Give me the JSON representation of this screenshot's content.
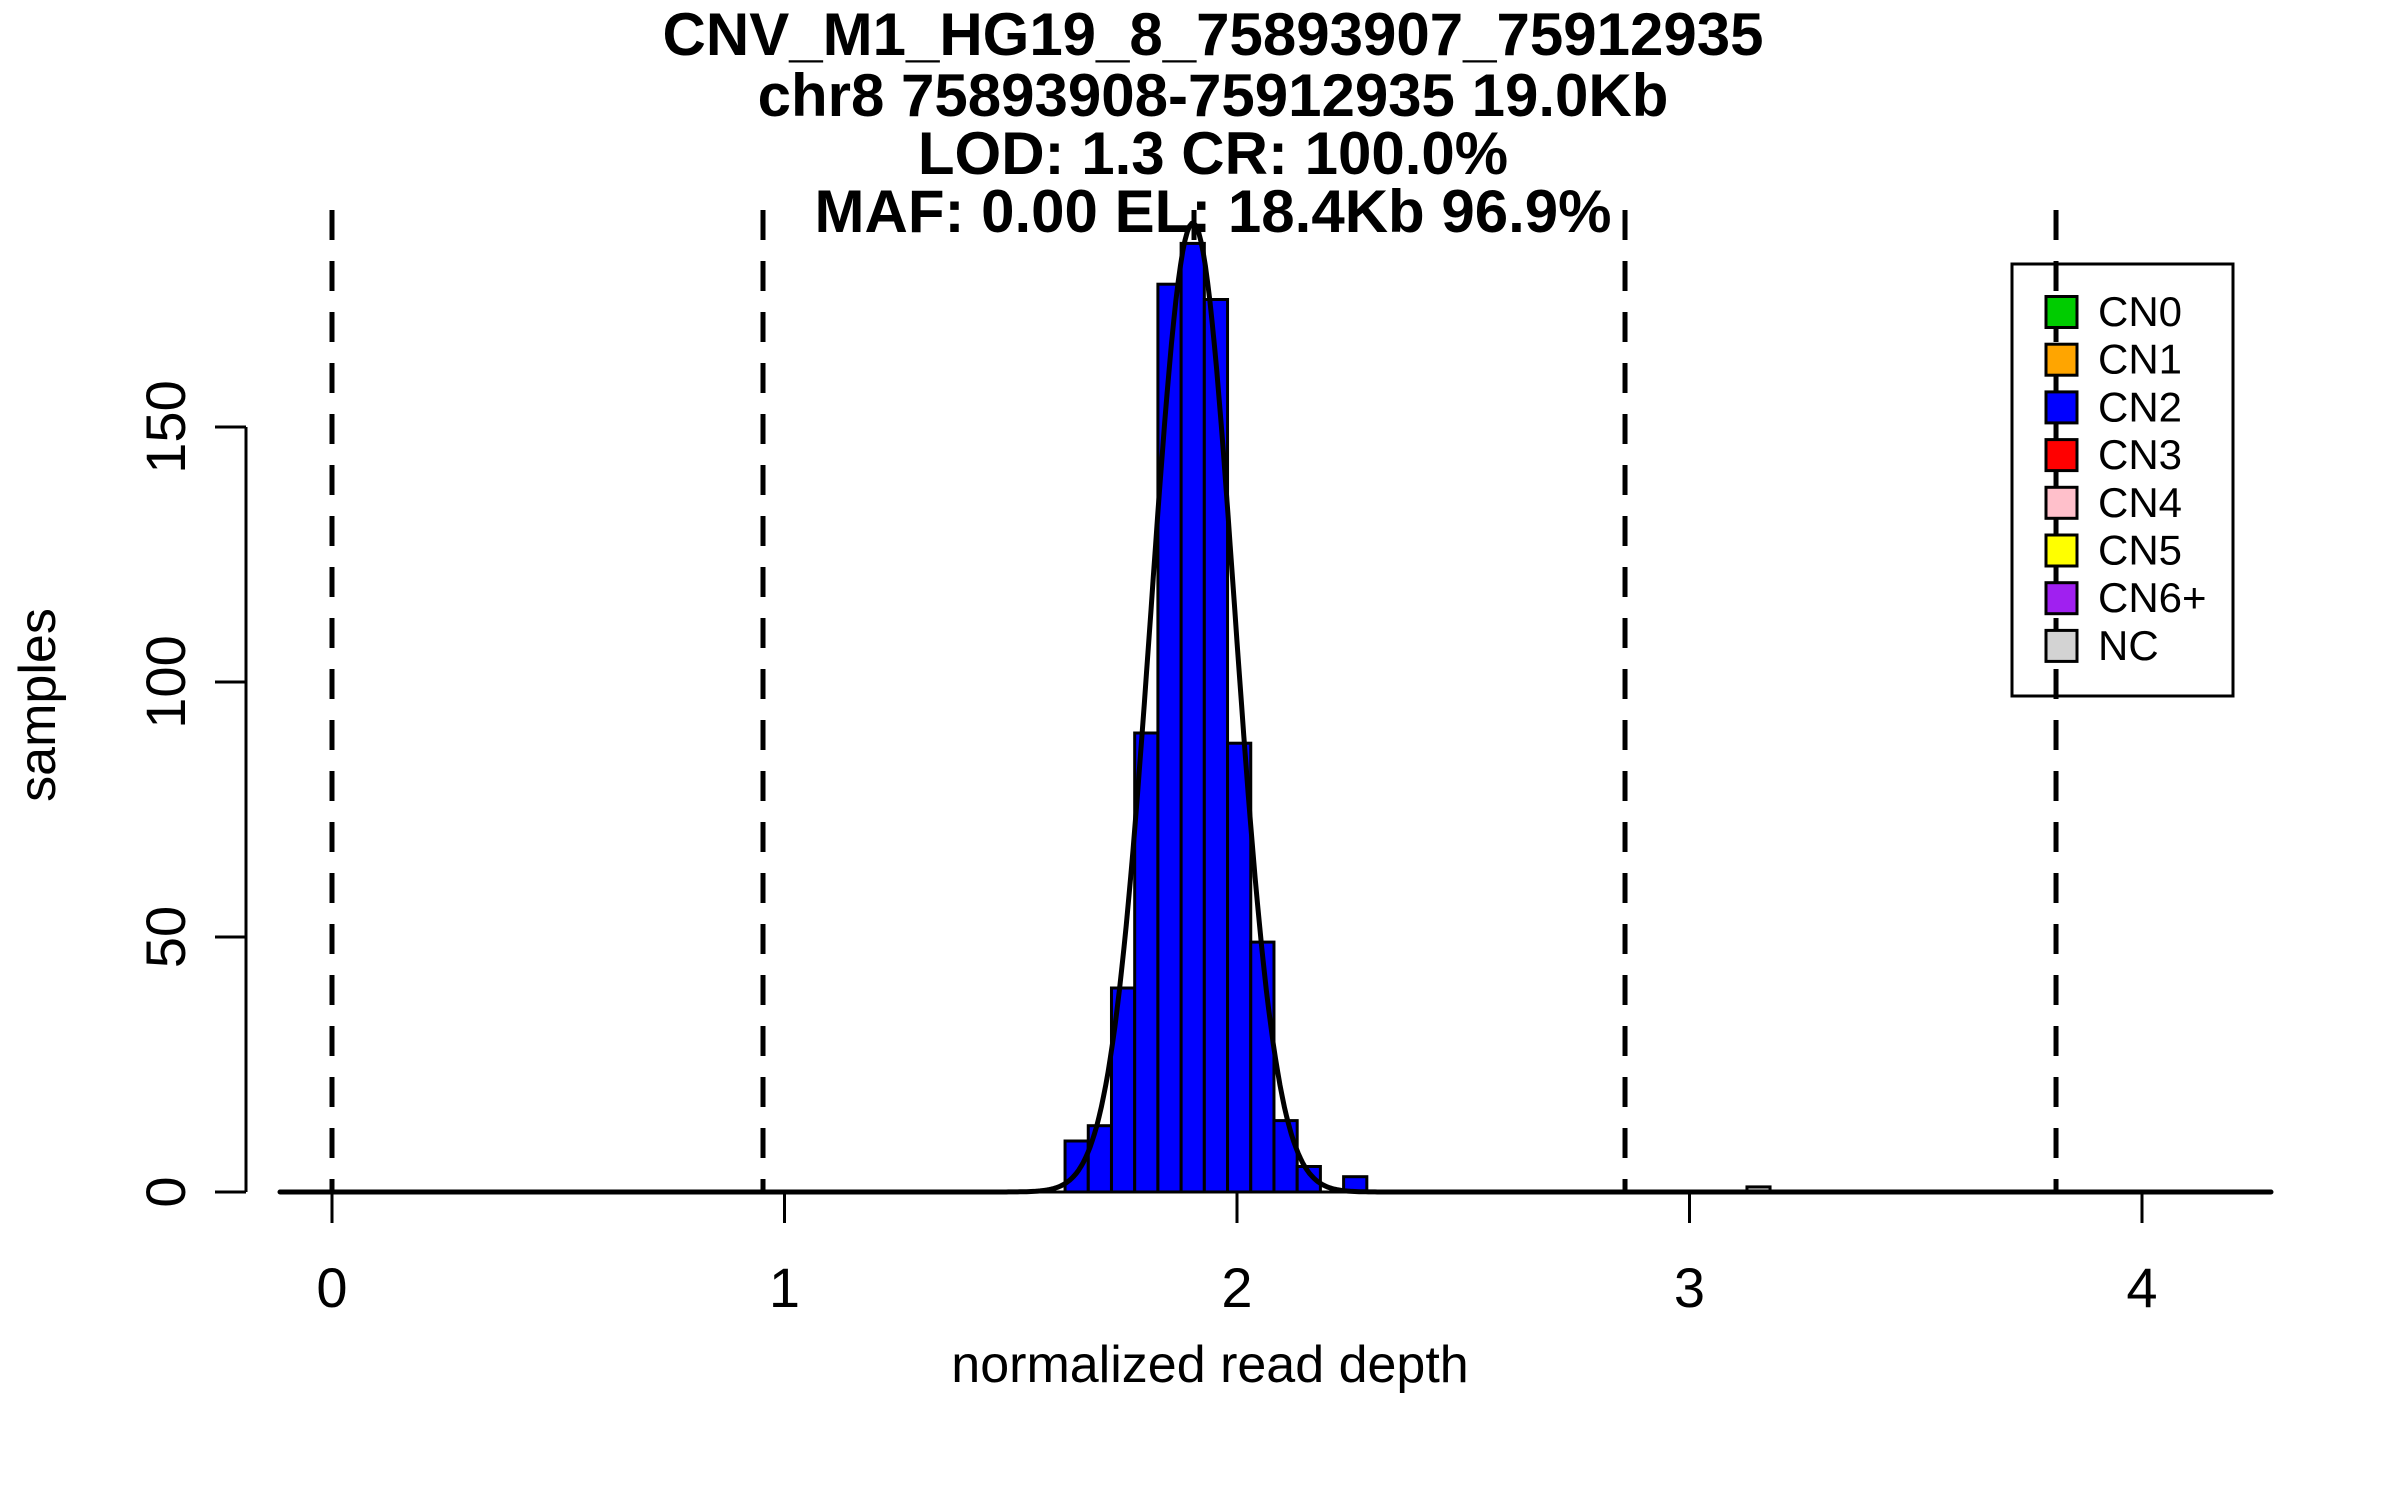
{
  "title": {
    "line1": "CNV_M1_HG19_8_75893907_75912935",
    "line2": "chr8 75893908-75912935 19.0Kb",
    "line3": "LOD: 1.3 CR: 100.0%",
    "line4": "MAF: 0.00 EL: 18.4Kb 96.9%"
  },
  "axes": {
    "xlabel": "normalized read depth",
    "ylabel": "samples",
    "x_ticks": [
      0,
      1,
      2,
      3,
      4
    ],
    "y_ticks": [
      0,
      50,
      100,
      150
    ]
  },
  "legend": {
    "items": [
      {
        "label": "CN0",
        "color": "#00CC00"
      },
      {
        "label": "CN1",
        "color": "#FFA500"
      },
      {
        "label": "CN2",
        "color": "#0000FF"
      },
      {
        "label": "CN3",
        "color": "#FF0000"
      },
      {
        "label": "CN4",
        "color": "#FFC0CB"
      },
      {
        "label": "CN5",
        "color": "#FFFF00"
      },
      {
        "label": "CN6+",
        "color": "#A020F0"
      },
      {
        "label": "NC",
        "color": "#D3D3D3"
      }
    ]
  },
  "chart_data": {
    "type": "bar",
    "subtype": "histogram",
    "title": "CNV_M1_HG19_8_75893907_75912935",
    "subtitle_lines": [
      "chr8 75893908-75912935 19.0Kb",
      "LOD: 1.3 CR: 100.0%",
      "MAF: 0.00 EL: 18.4Kb 96.9%"
    ],
    "xlabel": "normalized read depth",
    "ylabel": "samples",
    "xlim": [
      -0.115,
      4.29
    ],
    "ylim": [
      0,
      193
    ],
    "x_ticks": [
      0,
      1,
      2,
      3,
      4
    ],
    "y_ticks": [
      0,
      50,
      100,
      150
    ],
    "grid": false,
    "legend_position": "top-right",
    "histogram": {
      "class": "CN2",
      "color": "#0000FF",
      "bin_start": 1.62,
      "bin_width": 0.0513,
      "counts": [
        10,
        13,
        40,
        90,
        178,
        186,
        175,
        88,
        49,
        14,
        5,
        0,
        3
      ]
    },
    "extra_bars": [
      {
        "x0": 3.127,
        "x1": 3.178,
        "count": 1,
        "color": "#D3D3D3"
      }
    ],
    "dashed_guide_lines_x": [
      0,
      0.9525,
      1.905,
      2.8575,
      3.81
    ],
    "fit_curve": {
      "shape": "gaussian",
      "mean": 1.9025,
      "sd": 0.0917,
      "peak": 190,
      "color": "#000000"
    }
  }
}
